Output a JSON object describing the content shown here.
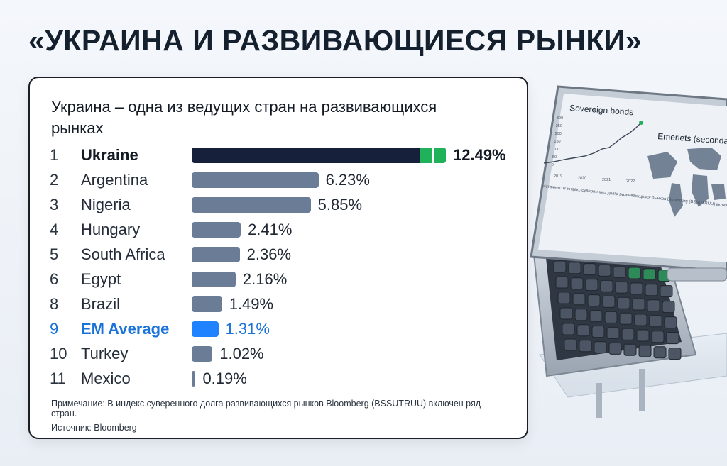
{
  "headline": "«УКРАИНА И РАЗВИВАЮЩИЕСЯ РЫНКИ»",
  "chart_data": {
    "type": "bar",
    "orientation": "horizontal",
    "title": "Украина – одна из ведущих стран на развивающихся рынках",
    "xlim": [
      0,
      12.49
    ],
    "unit": "%",
    "highlight_colors": {
      "lead": "#16203a",
      "accent": "#1fb25a",
      "em_average": "#1f82ff",
      "default": "#6b7d96"
    },
    "rows": [
      {
        "rank": "1",
        "country": "Ukraine",
        "value": 12.49,
        "label": "12.49%",
        "style": "lead"
      },
      {
        "rank": "2",
        "country": "Argentina",
        "value": 6.23,
        "label": "6.23%",
        "style": "default"
      },
      {
        "rank": "3",
        "country": "Nigeria",
        "value": 5.85,
        "label": "5.85%",
        "style": "default"
      },
      {
        "rank": "4",
        "country": "Hungary",
        "value": 2.41,
        "label": "2.41%",
        "style": "default"
      },
      {
        "rank": "5",
        "country": "South Africa",
        "value": 2.36,
        "label": "2.36%",
        "style": "default"
      },
      {
        "rank": "6",
        "country": "Egypt",
        "value": 2.16,
        "label": "2.16%",
        "style": "default"
      },
      {
        "rank": "8",
        "country": "Brazil",
        "value": 1.49,
        "label": "1.49%",
        "style": "default"
      },
      {
        "rank": "9",
        "country": "EM Average",
        "value": 1.31,
        "label": "1.31%",
        "style": "em"
      },
      {
        "rank": "10",
        "country": "Turkey",
        "value": 1.02,
        "label": "1.02%",
        "style": "default"
      },
      {
        "rank": "11",
        "country": "Mexico",
        "value": 0.19,
        "label": "0.19%",
        "style": "default"
      }
    ],
    "note": "Примечание: В индекс суверенного долга развивающихся рынков Bloomberg (BSSUTRUU) включен ряд стран.",
    "source": "Источник: Bloomberg"
  },
  "device_screen": {
    "panel_title": "Sovereign bonds",
    "map_title": "Emerlets (secondary",
    "y_ticks": [
      "300",
      "250",
      "200",
      "150",
      "100",
      "50",
      "0"
    ],
    "x_ticks": [
      "2019",
      "2020",
      "2021",
      "2022"
    ],
    "caption": "Источник: В индекс суверенного долга развивающихся рынков Bloomberg (BSSUTRUU) включен ряд стран. Источник: Bloomberg",
    "colors": {
      "screen": "#eef2f7",
      "line": "#3a4656",
      "dot": "#1fb25a",
      "map": "#5f6f84"
    }
  }
}
